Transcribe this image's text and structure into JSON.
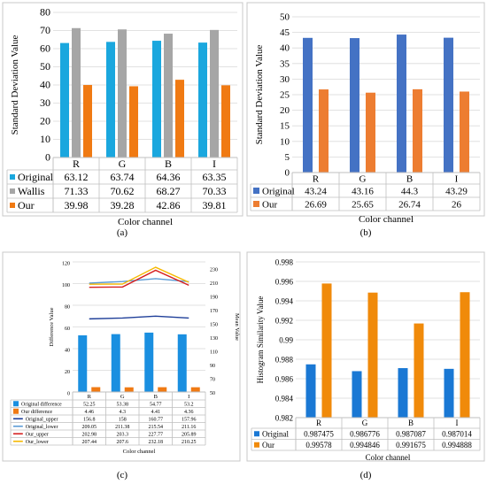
{
  "panels": {
    "a": {
      "caption": "(a)",
      "chart_data": {
        "type": "bar",
        "ylabel": "Standard Deviation Value",
        "xlabel": "Color channel",
        "ylim": [
          0,
          80
        ],
        "yticks": [
          0,
          10,
          20,
          30,
          40,
          50,
          60,
          70,
          80
        ],
        "categories": [
          "R",
          "G",
          "B",
          "I"
        ],
        "series": [
          {
            "name": "Original",
            "color": "#1aa7de",
            "values": [
              63.12,
              63.74,
              64.36,
              63.35
            ],
            "labels": [
              "63.12",
              "63.74",
              "64.36",
              "63.35"
            ]
          },
          {
            "name": "Wallis",
            "color": "#a6a6a6",
            "values": [
              71.33,
              70.62,
              68.27,
              70.33
            ],
            "labels": [
              "71.33",
              "70.62",
              "68.27",
              "70.33"
            ]
          },
          {
            "name": "Our",
            "color": "#f07a13",
            "values": [
              39.98,
              39.28,
              42.86,
              39.81
            ],
            "labels": [
              "39.98",
              "39.28",
              "42.86",
              "39.81"
            ]
          }
        ]
      }
    },
    "b": {
      "caption": "(b)",
      "chart_data": {
        "type": "bar",
        "ylabel": "Standard Deviation Value",
        "xlabel": "Color channel",
        "ylim": [
          0,
          50
        ],
        "yticks": [
          0,
          5,
          10,
          15,
          20,
          25,
          30,
          35,
          40,
          45,
          50
        ],
        "categories": [
          "R",
          "G",
          "B",
          "I"
        ],
        "series": [
          {
            "name": "Original",
            "color": "#4472c4",
            "values": [
              43.24,
              43.16,
              44.3,
              43.29
            ],
            "labels": [
              "43.24",
              "43.16",
              "44.3",
              "43.29"
            ]
          },
          {
            "name": "Our",
            "color": "#ed7d31",
            "values": [
              26.69,
              25.65,
              26.74,
              26
            ],
            "labels": [
              "26.69",
              "25.65",
              "26.74",
              "26"
            ]
          }
        ]
      }
    },
    "c": {
      "caption": "(c)",
      "chart_data": {
        "type": "bar",
        "ylabel": "Difference Value",
        "y2label": "Mean Value",
        "xlabel": "Color channel",
        "ylim": [
          0,
          120
        ],
        "yticks": [
          0,
          20,
          40,
          60,
          80,
          100,
          120
        ],
        "y2lim": [
          50,
          240
        ],
        "y2ticks": [
          50,
          70,
          90,
          110,
          130,
          150,
          170,
          190,
          210,
          230
        ],
        "categories": [
          "R",
          "G",
          "B",
          "I"
        ],
        "series": [
          {
            "name": "Original difference",
            "kind": "bar",
            "axis": "left",
            "color": "#1a8fe0",
            "values": [
              52.25,
              53.38,
              54.77,
              53.2
            ],
            "labels": [
              "52.25",
              "53.38",
              "54.77",
              "53.2"
            ]
          },
          {
            "name": "Our difference",
            "kind": "bar",
            "axis": "left",
            "color": "#f07a13",
            "values": [
              4.46,
              4.3,
              4.41,
              4.36
            ],
            "labels": [
              "4.46",
              "4.3",
              "4.41",
              "4.36"
            ]
          },
          {
            "name": "Original_upper",
            "kind": "line",
            "axis": "right",
            "color": "#1f3f99",
            "values": [
              156.8,
              158,
              160.77,
              157.96
            ],
            "labels": [
              "156.8",
              "158",
              "160.77",
              "157.96"
            ]
          },
          {
            "name": "Original_lower",
            "kind": "line",
            "axis": "right",
            "color": "#5b9bd5",
            "values": [
              209.05,
              211.38,
              215.54,
              211.16
            ],
            "labels": [
              "209.05",
              "211.38",
              "215.54",
              "211.16"
            ]
          },
          {
            "name": "Our_upper",
            "kind": "line",
            "axis": "right",
            "color": "#d62020",
            "values": [
              202.98,
              203.3,
              227.77,
              205.89
            ],
            "labels": [
              "202.98",
              "203.3",
              "227.77",
              "205.89"
            ]
          },
          {
            "name": "Our_lower",
            "kind": "line",
            "axis": "right",
            "color": "#f5b800",
            "values": [
              207.44,
              207.6,
              232.18,
              210.25
            ],
            "labels": [
              "207.44",
              "207.6",
              "232.18",
              "210.25"
            ]
          }
        ]
      }
    },
    "d": {
      "caption": "(d)",
      "chart_data": {
        "type": "bar",
        "ylabel": "Histogram Similarity Value",
        "xlabel": "Color channel",
        "ylim": [
          0.982,
          0.998
        ],
        "yticks": [
          "0.982",
          "0.984",
          "0.986",
          "0.988",
          "0.99",
          "0.992",
          "0.994",
          "0.996",
          "0.998"
        ],
        "categories": [
          "R",
          "G",
          "B",
          "I"
        ],
        "series": [
          {
            "name": "Original",
            "color": "#1a78d4",
            "values": [
              0.987475,
              0.986776,
              0.987087,
              0.987014
            ],
            "labels": [
              "0.987475",
              "0.986776",
              "0.987087",
              "0.987014"
            ]
          },
          {
            "name": "Our",
            "color": "#f08a0a",
            "values": [
              0.99578,
              0.994846,
              0.991675,
              0.994888
            ],
            "labels": [
              "0.99578",
              "0.994846",
              "0.991675",
              "0.994888"
            ]
          }
        ]
      }
    }
  }
}
